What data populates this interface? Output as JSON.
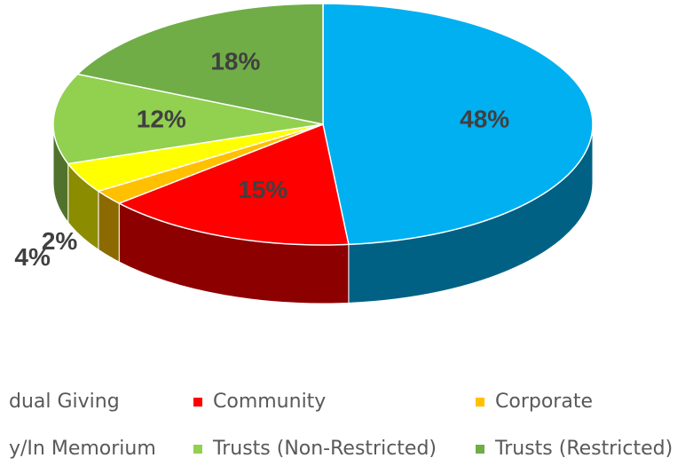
{
  "chart_data": {
    "type": "pie",
    "categories": [
      "dual Giving",
      "Community",
      "Corporate",
      "y/In Memorium",
      "Trusts (Non-Restricted)",
      "Trusts (Restricted)"
    ],
    "values": [
      48,
      15,
      2,
      4,
      12,
      18
    ],
    "value_labels": [
      "48%",
      "15%",
      "2%",
      "4%",
      "12%",
      "18%"
    ],
    "colors": [
      "#00b0f0",
      "#ff0000",
      "#ffc000",
      "#ffff00",
      "#92d050",
      "#70ad47"
    ],
    "legend": "bottom"
  }
}
